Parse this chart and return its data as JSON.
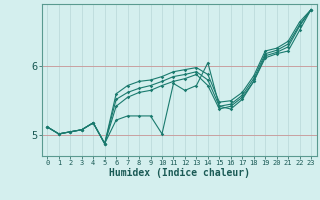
{
  "xlabel": "Humidex (Indice chaleur)",
  "bg_color": "#d4efee",
  "line_color": "#1a7a6e",
  "grid_color_h": "#c8a0a0",
  "grid_color_v": "#b8d8d8",
  "xlim": [
    -0.5,
    23.5
  ],
  "ylim": [
    4.7,
    6.9
  ],
  "yticks": [
    5,
    6
  ],
  "xticks": [
    0,
    1,
    2,
    3,
    4,
    5,
    6,
    7,
    8,
    9,
    10,
    11,
    12,
    13,
    14,
    15,
    16,
    17,
    18,
    19,
    20,
    21,
    22,
    23
  ],
  "series": [
    [
      5.12,
      5.02,
      5.05,
      5.08,
      5.18,
      4.88,
      5.22,
      5.28,
      5.28,
      5.28,
      5.02,
      5.75,
      5.65,
      5.72,
      6.05,
      5.42,
      5.38,
      5.52,
      5.78,
      6.12,
      6.18,
      6.22,
      6.52,
      6.82
    ],
    [
      5.12,
      5.02,
      5.05,
      5.08,
      5.18,
      4.88,
      5.42,
      5.55,
      5.62,
      5.65,
      5.72,
      5.78,
      5.82,
      5.88,
      5.72,
      5.38,
      5.42,
      5.55,
      5.78,
      6.15,
      6.2,
      6.28,
      6.58,
      6.82
    ],
    [
      5.12,
      5.02,
      5.05,
      5.08,
      5.18,
      4.88,
      5.52,
      5.62,
      5.68,
      5.72,
      5.78,
      5.85,
      5.88,
      5.92,
      5.8,
      5.42,
      5.45,
      5.58,
      5.82,
      6.18,
      6.23,
      6.32,
      6.6,
      6.82
    ],
    [
      5.12,
      5.02,
      5.05,
      5.08,
      5.18,
      4.88,
      5.6,
      5.72,
      5.78,
      5.8,
      5.85,
      5.92,
      5.95,
      5.98,
      5.88,
      5.48,
      5.5,
      5.62,
      5.86,
      6.22,
      6.26,
      6.36,
      6.64,
      6.82
    ]
  ]
}
